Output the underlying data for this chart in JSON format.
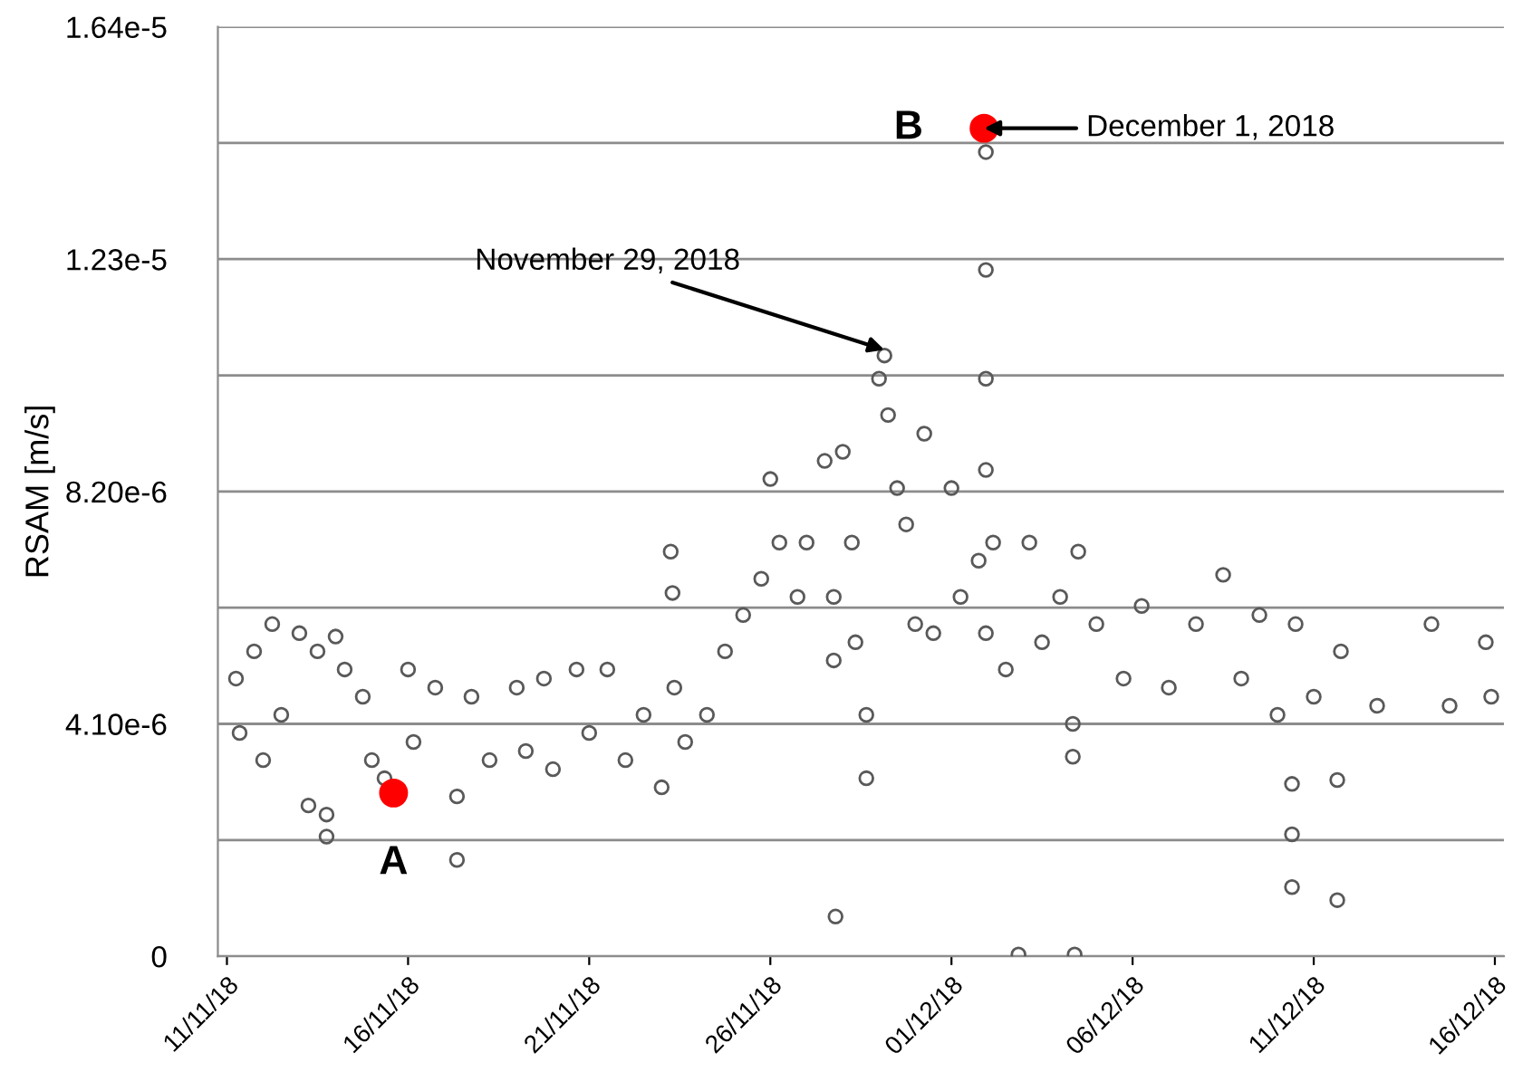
{
  "chart_data": {
    "type": "scatter",
    "ylabel": "RSAM [m/s]",
    "grid": "y",
    "legend": false,
    "marker": "circle",
    "xlim": [
      "2018-11-10T18:00",
      "2018-12-16T06:00"
    ],
    "xticks": [
      {
        "value": "2018-11-11",
        "label": "11/11/18"
      },
      {
        "value": "2018-11-16",
        "label": "16/11/18"
      },
      {
        "value": "2018-11-21",
        "label": "21/11/18"
      },
      {
        "value": "2018-11-26",
        "label": "26/11/18"
      },
      {
        "value": "2018-12-01",
        "label": "01/12/18"
      },
      {
        "value": "2018-12-06",
        "label": "06/12/18"
      },
      {
        "value": "2018-12-11",
        "label": "11/12/18"
      },
      {
        "value": "2018-12-16",
        "label": "16/12/18"
      }
    ],
    "ylim": [
      0,
      1.64e-05
    ],
    "yticks": [
      0,
      {
        "value": 2.05e-06,
        "label": null
      },
      {
        "value": 4.1e-06,
        "label": "4.10e-6"
      },
      {
        "value": 6.15e-06,
        "label": null
      },
      {
        "value": 8.2e-06,
        "label": "8.20e-6"
      },
      {
        "value": 1.025e-05,
        "label": null
      },
      {
        "value": 1.23e-05,
        "label": "1.23e-5"
      },
      {
        "value": 1.435e-05,
        "label": null
      },
      {
        "value": 1.64e-05,
        "label": "1.64e-5"
      }
    ],
    "series": [
      {
        "color": "#595959",
        "x": [
          "2018-11-11T06:00",
          "2018-11-11T08:24",
          "2018-11-11T18:00",
          "2018-11-12T00:00",
          "2018-11-12T06:00",
          "2018-11-12T12:00",
          "2018-11-13T00:00",
          "2018-11-13T06:00",
          "2018-11-13T12:00",
          "2018-11-13T18:00",
          "2018-11-13T18:00",
          "2018-11-14T00:00",
          "2018-11-14T06:00",
          "2018-11-14T18:00",
          "2018-11-15T00:00",
          "2018-11-15T08:24",
          "2018-11-16T00:00",
          "2018-11-16T03:36",
          "2018-11-16T18:00",
          "2018-11-17T08:24",
          "2018-11-17T08:24",
          "2018-11-17T18:00",
          "2018-11-18T06:00",
          "2018-11-19T00:00",
          "2018-11-19T06:00",
          "2018-11-19T18:00",
          "2018-11-20T00:00",
          "2018-11-20T15:36",
          "2018-11-21T00:00",
          "2018-11-21T12:00",
          "2018-11-22T00:00",
          "2018-11-22T12:00",
          "2018-11-23T00:00",
          "2018-11-23T06:00",
          "2018-11-23T07:12",
          "2018-11-23T08:24",
          "2018-11-23T15:36",
          "2018-11-24T06:00",
          "2018-11-24T18:00",
          "2018-11-25T06:00",
          "2018-11-25T18:00",
          "2018-11-26T00:00",
          "2018-11-26T06:00",
          "2018-11-26T18:00",
          "2018-11-27T00:00",
          "2018-11-27T12:00",
          "2018-11-27T18:00",
          "2018-11-27T18:00",
          "2018-11-27T19:12",
          "2018-11-28T00:00",
          "2018-11-28T06:00",
          "2018-11-28T08:24",
          "2018-11-28T15:36",
          "2018-11-28T15:36",
          "2018-11-29T00:00",
          "2018-11-29T03:36",
          "2018-11-29T06:00",
          "2018-11-29T12:00",
          "2018-11-29T18:00",
          "2018-11-30T00:00",
          "2018-11-30T06:00",
          "2018-11-30T12:00",
          "2018-12-01T00:00",
          "2018-12-01T06:00",
          "2018-12-01T18:00",
          "2018-12-01T22:48",
          "2018-12-01T22:48",
          "2018-12-01T22:48",
          "2018-12-01T22:48",
          "2018-12-01T22:48",
          "2018-12-02T03:36",
          "2018-12-02T12:00",
          "2018-12-02T20:24",
          "2018-12-03T03:36",
          "2018-12-03T12:00",
          "2018-12-04T00:00",
          "2018-12-04T08:24",
          "2018-12-04T08:24",
          "2018-12-04T09:36",
          "2018-12-04T12:00",
          "2018-12-05T00:00",
          "2018-12-05T18:00",
          "2018-12-06T06:00",
          "2018-12-07T00:00",
          "2018-12-07T18:00",
          "2018-12-08T12:00",
          "2018-12-09T00:00",
          "2018-12-09T12:00",
          "2018-12-10T00:00",
          "2018-12-10T09:36",
          "2018-12-10T09:36",
          "2018-12-10T09:36",
          "2018-12-10T12:00",
          "2018-12-11T00:00",
          "2018-12-11T15:36",
          "2018-12-11T15:36",
          "2018-12-11T18:00",
          "2018-12-12T18:00",
          "2018-12-14T06:00",
          "2018-12-14T18:00",
          "2018-12-15T18:00",
          "2018-12-15T21:36"
        ],
        "values": [
          4.9e-06,
          3.94e-06,
          5.38e-06,
          3.46e-06,
          5.86e-06,
          4.26e-06,
          5.7e-06,
          2.66e-06,
          5.38e-06,
          2.5e-06,
          2.11e-06,
          5.64e-06,
          5.06e-06,
          4.58e-06,
          3.46e-06,
          3.14e-06,
          5.06e-06,
          3.78e-06,
          4.74e-06,
          2.82e-06,
          1.7e-06,
          4.58e-06,
          3.46e-06,
          4.74e-06,
          3.62e-06,
          4.9e-06,
          3.3e-06,
          5.06e-06,
          3.94e-06,
          5.06e-06,
          3.46e-06,
          4.26e-06,
          2.98e-06,
          7.14e-06,
          6.41e-06,
          4.74e-06,
          3.78e-06,
          4.26e-06,
          5.38e-06,
          6.02e-06,
          6.66e-06,
          8.42e-06,
          7.3e-06,
          6.34e-06,
          7.3e-06,
          8.74e-06,
          6.34e-06,
          5.22e-06,
          7e-07,
          8.9e-06,
          7.3e-06,
          5.54e-06,
          4.26e-06,
          3.14e-06,
          1.019e-05,
          1.06e-05,
          9.55e-06,
          8.26e-06,
          7.62e-06,
          5.86e-06,
          9.22e-06,
          5.7e-06,
          8.26e-06,
          6.34e-06,
          6.98e-06,
          1.419e-05,
          1.211e-05,
          1.019e-05,
          8.58e-06,
          5.7e-06,
          7.3e-06,
          5.06e-06,
          3e-08,
          7.3e-06,
          5.54e-06,
          6.34e-06,
          4.1e-06,
          3.52e-06,
          3e-08,
          7.14e-06,
          5.86e-06,
          4.9e-06,
          6.18e-06,
          4.74e-06,
          5.86e-06,
          6.73e-06,
          4.9e-06,
          6.02e-06,
          4.26e-06,
          3.04e-06,
          2.15e-06,
          1.22e-06,
          5.86e-06,
          4.58e-06,
          3.11e-06,
          9.9e-07,
          5.38e-06,
          4.42e-06,
          5.86e-06,
          4.42e-06,
          5.54e-06,
          4.58e-06
        ]
      },
      {
        "color": "#ff0000",
        "x": [
          "2018-11-15T14:24",
          "2018-12-01T21:36"
        ],
        "values": [
          2.88e-06,
          1.461e-05
        ]
      }
    ],
    "annotations": [
      {
        "text": "A",
        "x": "2018-11-15T14:24",
        "y": 2.88e-06
      },
      {
        "text": "B",
        "x": "2018-12-01T21:36",
        "y": 1.461e-05
      },
      {
        "text": "November 29, 2018",
        "x": "2018-11-29T03:36",
        "y": 1.07e-05
      },
      {
        "text": "December 1, 2018",
        "x": "2018-12-01T21:36",
        "y": 1.461e-05
      }
    ]
  }
}
